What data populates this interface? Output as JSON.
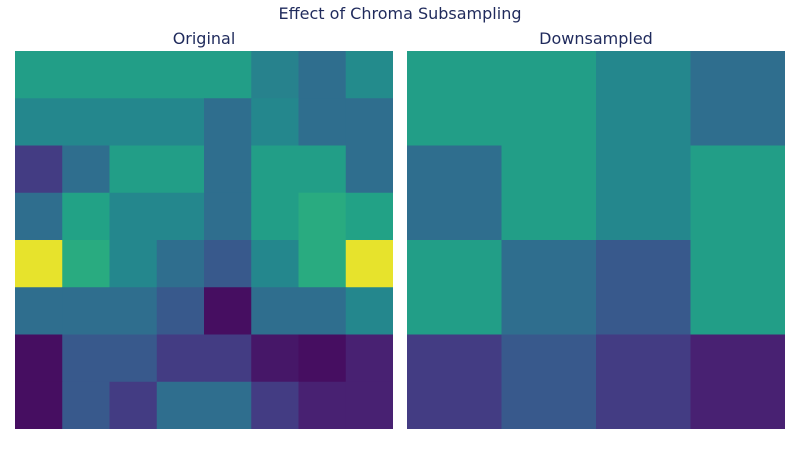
{
  "figure_title": "Effect of Chroma Subsampling",
  "chart_data": [
    {
      "type": "heatmap",
      "title": "Original",
      "colormap": "viridis",
      "grid": false,
      "axes": "off",
      "rows": 8,
      "cols": 8,
      "values": [
        [
          0.7,
          0.7,
          0.7,
          0.7,
          0.7,
          0.55,
          0.45,
          0.6
        ],
        [
          0.58,
          0.58,
          0.58,
          0.58,
          0.45,
          0.58,
          0.45,
          0.45
        ],
        [
          0.22,
          0.45,
          0.7,
          0.7,
          0.45,
          0.7,
          0.7,
          0.45
        ],
        [
          0.45,
          0.72,
          0.58,
          0.58,
          0.45,
          0.7,
          0.76,
          0.72
        ],
        [
          0.98,
          0.76,
          0.58,
          0.45,
          0.35,
          0.58,
          0.76,
          0.98
        ],
        [
          0.45,
          0.45,
          0.45,
          0.35,
          0.05,
          0.45,
          0.45,
          0.58
        ],
        [
          0.05,
          0.35,
          0.35,
          0.22,
          0.22,
          0.08,
          0.05,
          0.12
        ],
        [
          0.05,
          0.35,
          0.22,
          0.45,
          0.45,
          0.22,
          0.12,
          0.12
        ]
      ]
    },
    {
      "type": "heatmap",
      "title": "Downsampled",
      "colormap": "viridis",
      "grid": false,
      "axes": "off",
      "rows": 4,
      "cols": 4,
      "values": [
        [
          0.7,
          0.7,
          0.58,
          0.45
        ],
        [
          0.45,
          0.7,
          0.58,
          0.7
        ],
        [
          0.7,
          0.45,
          0.35,
          0.7
        ],
        [
          0.22,
          0.35,
          0.22,
          0.12
        ]
      ]
    }
  ]
}
